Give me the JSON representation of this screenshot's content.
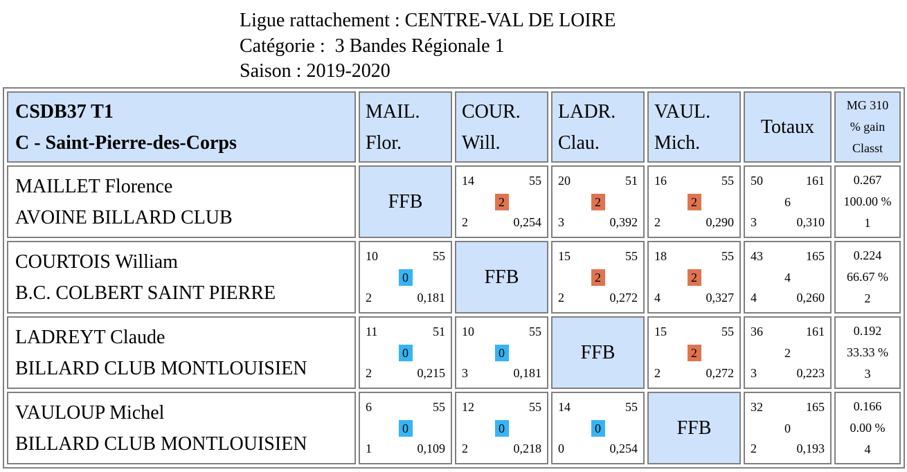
{
  "header": {
    "ligue": "Ligue rattachement : CENTRE-VAL DE LOIRE",
    "categorie": "Catégorie :  3 Bandes Régionale 1",
    "saison": "Saison : 2019-2020"
  },
  "team": {
    "line1": "CSDB37 T1",
    "line2": "C - Saint-Pierre-des-Corps"
  },
  "columns": [
    {
      "line1": "MAIL.",
      "line2": "Flor."
    },
    {
      "line1": "COUR.",
      "line2": "Will."
    },
    {
      "line1": "LADR.",
      "line2": "Clau."
    },
    {
      "line1": "VAUL.",
      "line2": "Mich."
    }
  ],
  "totals_label": "Totaux",
  "mg_header": {
    "line1": "MG 310",
    "line2": "% gain",
    "line3": "Classt"
  },
  "colors": {
    "win": "#e07451",
    "loss": "#36b4f4",
    "header_bg": "#cfe2fb",
    "border": "#808080"
  },
  "ffb_label": "FFB",
  "rows": [
    {
      "name": "MAILLET Florence",
      "club": "AVOINE BILLARD CLUB",
      "cells": [
        null,
        {
          "tl": "14",
          "tr": "55",
          "pts": "2",
          "bl": "2",
          "br": "0,254"
        },
        {
          "tl": "20",
          "tr": "51",
          "pts": "2",
          "bl": "3",
          "br": "0,392"
        },
        {
          "tl": "16",
          "tr": "55",
          "pts": "2",
          "bl": "2",
          "br": "0,290"
        }
      ],
      "totals": {
        "tl": "50",
        "tr": "161",
        "pts": "6",
        "bl": "3",
        "br": "0,310"
      },
      "mg": {
        "moy": "0.267",
        "pct": "100.00 %",
        "rank": "1"
      }
    },
    {
      "name": "COURTOIS William",
      "club": "B.C. COLBERT SAINT PIERRE",
      "cells": [
        {
          "tl": "10",
          "tr": "55",
          "pts": "0",
          "bl": "2",
          "br": "0,181"
        },
        null,
        {
          "tl": "15",
          "tr": "55",
          "pts": "2",
          "bl": "2",
          "br": "0,272"
        },
        {
          "tl": "18",
          "tr": "55",
          "pts": "2",
          "bl": "4",
          "br": "0,327"
        }
      ],
      "totals": {
        "tl": "43",
        "tr": "165",
        "pts": "4",
        "bl": "4",
        "br": "0,260"
      },
      "mg": {
        "moy": "0.224",
        "pct": "66.67 %",
        "rank": "2"
      }
    },
    {
      "name": "LADREYT Claude",
      "club": "BILLARD CLUB MONTLOUISIEN",
      "cells": [
        {
          "tl": "11",
          "tr": "51",
          "pts": "0",
          "bl": "2",
          "br": "0,215"
        },
        {
          "tl": "10",
          "tr": "55",
          "pts": "0",
          "bl": "3",
          "br": "0,181"
        },
        null,
        {
          "tl": "15",
          "tr": "55",
          "pts": "2",
          "bl": "2",
          "br": "0,272"
        }
      ],
      "totals": {
        "tl": "36",
        "tr": "161",
        "pts": "2",
        "bl": "3",
        "br": "0,223"
      },
      "mg": {
        "moy": "0.192",
        "pct": "33.33 %",
        "rank": "3"
      }
    },
    {
      "name": "VAULOUP Michel",
      "club": "BILLARD CLUB MONTLOUISIEN",
      "cells": [
        {
          "tl": "6",
          "tr": "55",
          "pts": "0",
          "bl": "1",
          "br": "0,109"
        },
        {
          "tl": "12",
          "tr": "55",
          "pts": "0",
          "bl": "2",
          "br": "0,218"
        },
        {
          "tl": "14",
          "tr": "55",
          "pts": "0",
          "bl": "0",
          "br": "0,254"
        },
        null
      ],
      "totals": {
        "tl": "32",
        "tr": "165",
        "pts": "0",
        "bl": "2",
        "br": "0,193"
      },
      "mg": {
        "moy": "0.166",
        "pct": "0.00 %",
        "rank": "4"
      }
    }
  ]
}
